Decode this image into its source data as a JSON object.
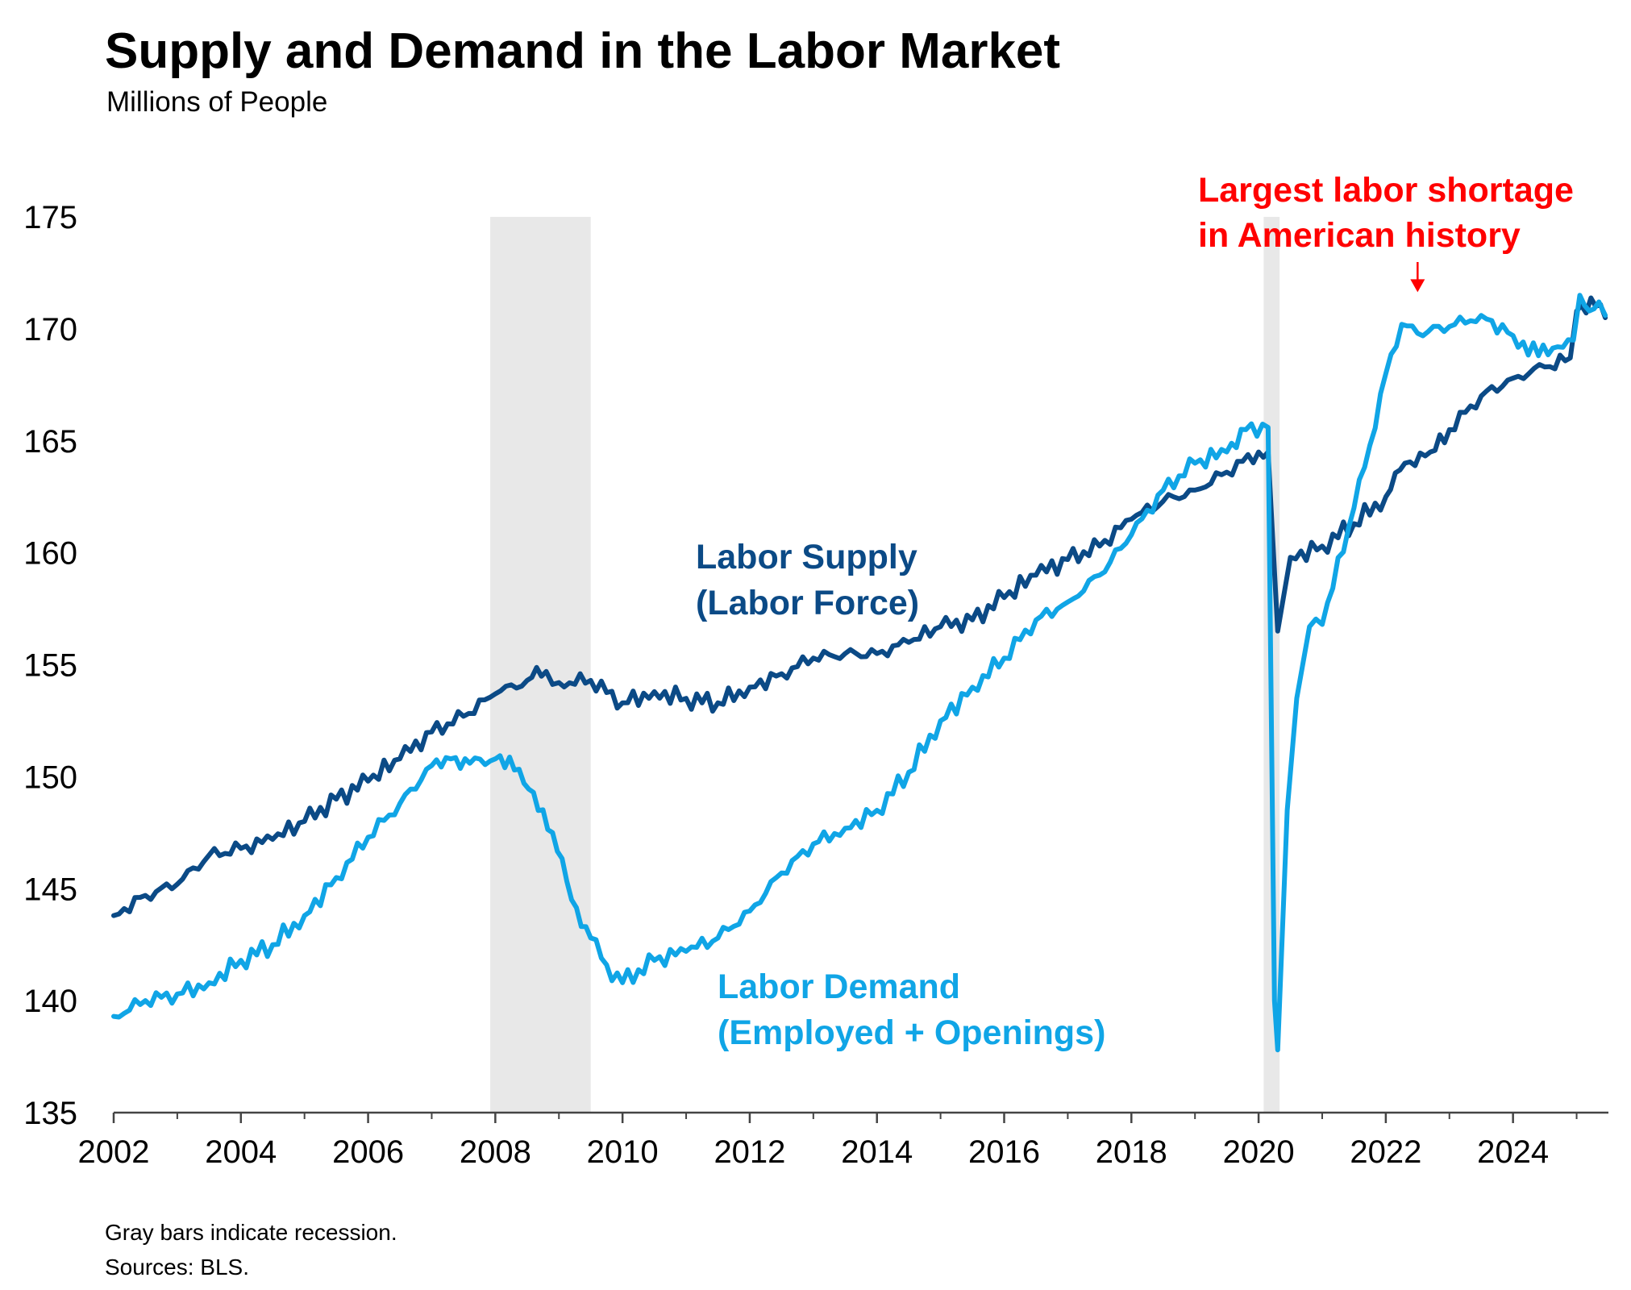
{
  "title": "Supply and Demand in the Labor Market",
  "subtitle": "Millions of People",
  "footnotes": [
    "Gray bars indicate recession.",
    "Sources: BLS."
  ],
  "colors": {
    "supply": "#0b4a86",
    "demand": "#10a5e6",
    "annotation": "#ff0000",
    "recession": "#e8e8e8",
    "axis": "#444444"
  },
  "chart_data": {
    "type": "line",
    "title": "Supply and Demand in the Labor Market",
    "subtitle": "Millions of People",
    "xlabel": "",
    "ylabel": "",
    "xlim": [
      2002,
      2025.5
    ],
    "ylim": [
      135,
      175
    ],
    "x_ticks": [
      "2002",
      "2004",
      "2006",
      "2008",
      "2010",
      "2012",
      "2014",
      "2016",
      "2018",
      "2020",
      "2022",
      "2024"
    ],
    "y_ticks": [
      "135",
      "140",
      "145",
      "150",
      "155",
      "160",
      "165",
      "170",
      "175"
    ],
    "grid": false,
    "recessions": [
      [
        2007.92,
        2009.5
      ],
      [
        2020.08,
        2020.33
      ]
    ],
    "series": [
      {
        "name": "Labor Supply (Labor Force)",
        "label_lines": [
          "Labor Supply",
          "(Labor Force)"
        ],
        "points": [
          [
            2002.0,
            143.8
          ],
          [
            2002.5,
            144.7
          ],
          [
            2003.0,
            145.2
          ],
          [
            2003.5,
            146.5
          ],
          [
            2004.0,
            146.8
          ],
          [
            2004.5,
            147.2
          ],
          [
            2005.0,
            148.0
          ],
          [
            2005.5,
            149.0
          ],
          [
            2006.0,
            149.8
          ],
          [
            2006.5,
            150.8
          ],
          [
            2007.0,
            152.0
          ],
          [
            2007.5,
            152.7
          ],
          [
            2008.0,
            153.7
          ],
          [
            2008.5,
            154.3
          ],
          [
            2008.8,
            154.7
          ],
          [
            2009.0,
            154.2
          ],
          [
            2009.5,
            154.3
          ],
          [
            2010.0,
            153.3
          ],
          [
            2010.5,
            153.8
          ],
          [
            2011.0,
            153.5
          ],
          [
            2011.5,
            153.3
          ],
          [
            2012.0,
            154.0
          ],
          [
            2012.5,
            154.6
          ],
          [
            2013.0,
            155.3
          ],
          [
            2013.5,
            155.5
          ],
          [
            2014.0,
            155.5
          ],
          [
            2014.5,
            156.0
          ],
          [
            2015.0,
            156.7
          ],
          [
            2015.5,
            157.0
          ],
          [
            2016.0,
            158.0
          ],
          [
            2016.5,
            159.0
          ],
          [
            2017.0,
            159.7
          ],
          [
            2017.5,
            160.3
          ],
          [
            2018.0,
            161.5
          ],
          [
            2018.5,
            162.3
          ],
          [
            2019.0,
            162.8
          ],
          [
            2019.5,
            163.6
          ],
          [
            2020.0,
            164.5
          ],
          [
            2020.15,
            164.5
          ],
          [
            2020.3,
            156.5
          ],
          [
            2020.5,
            159.8
          ],
          [
            2021.0,
            160.3
          ],
          [
            2021.5,
            161.3
          ],
          [
            2022.0,
            162.5
          ],
          [
            2022.3,
            164.0
          ],
          [
            2022.7,
            164.5
          ],
          [
            2023.0,
            165.5
          ],
          [
            2023.5,
            167.0
          ],
          [
            2024.0,
            167.8
          ],
          [
            2024.5,
            168.3
          ],
          [
            2024.9,
            168.7
          ],
          [
            2025.0,
            170.8
          ],
          [
            2025.3,
            171.0
          ],
          [
            2025.45,
            170.5
          ]
        ]
      },
      {
        "name": "Labor Demand (Employed + Openings)",
        "label_lines": [
          "Labor Demand",
          "(Employed + Openings)"
        ],
        "points": [
          [
            2002.0,
            139.3
          ],
          [
            2002.5,
            140.0
          ],
          [
            2003.0,
            140.3
          ],
          [
            2003.5,
            140.8
          ],
          [
            2004.0,
            141.8
          ],
          [
            2004.5,
            142.5
          ],
          [
            2005.0,
            143.8
          ],
          [
            2005.5,
            145.5
          ],
          [
            2006.0,
            147.3
          ],
          [
            2006.5,
            148.8
          ],
          [
            2007.0,
            150.5
          ],
          [
            2007.3,
            150.8
          ],
          [
            2007.6,
            150.6
          ],
          [
            2008.0,
            150.8
          ],
          [
            2008.3,
            150.3
          ],
          [
            2008.6,
            149.3
          ],
          [
            2008.9,
            147.5
          ],
          [
            2009.2,
            144.5
          ],
          [
            2009.5,
            142.8
          ],
          [
            2009.75,
            141.6
          ],
          [
            2010.0,
            140.8
          ],
          [
            2010.5,
            141.8
          ],
          [
            2011.0,
            142.2
          ],
          [
            2011.5,
            142.8
          ],
          [
            2012.0,
            144.0
          ],
          [
            2012.5,
            145.7
          ],
          [
            2013.0,
            147.0
          ],
          [
            2013.5,
            147.7
          ],
          [
            2014.0,
            148.5
          ],
          [
            2014.5,
            150.2
          ],
          [
            2015.0,
            152.5
          ],
          [
            2015.5,
            154.0
          ],
          [
            2016.0,
            155.3
          ],
          [
            2016.5,
            157.0
          ],
          [
            2017.0,
            157.8
          ],
          [
            2017.5,
            159.0
          ],
          [
            2018.0,
            160.8
          ],
          [
            2018.5,
            162.8
          ],
          [
            2019.0,
            164.0
          ],
          [
            2019.5,
            164.5
          ],
          [
            2019.8,
            165.5
          ],
          [
            2020.15,
            165.6
          ],
          [
            2020.25,
            140.0
          ],
          [
            2020.3,
            137.8
          ],
          [
            2020.45,
            148.5
          ],
          [
            2020.6,
            153.5
          ],
          [
            2020.8,
            156.7
          ],
          [
            2021.0,
            156.8
          ],
          [
            2021.5,
            162.0
          ],
          [
            2021.75,
            164.8
          ],
          [
            2022.0,
            168.0
          ],
          [
            2022.25,
            170.2
          ],
          [
            2022.5,
            169.8
          ],
          [
            2023.0,
            170.1
          ],
          [
            2023.5,
            170.6
          ],
          [
            2024.0,
            169.7
          ],
          [
            2024.4,
            168.8
          ],
          [
            2024.7,
            169.2
          ],
          [
            2024.95,
            169.5
          ],
          [
            2025.05,
            171.5
          ],
          [
            2025.2,
            170.8
          ],
          [
            2025.35,
            171.2
          ],
          [
            2025.45,
            170.6
          ]
        ]
      }
    ],
    "annotations": [
      {
        "lines": [
          "Largest labor shortage",
          "in American history"
        ],
        "target": [
          2022.5,
          170.2
        ]
      }
    ]
  }
}
